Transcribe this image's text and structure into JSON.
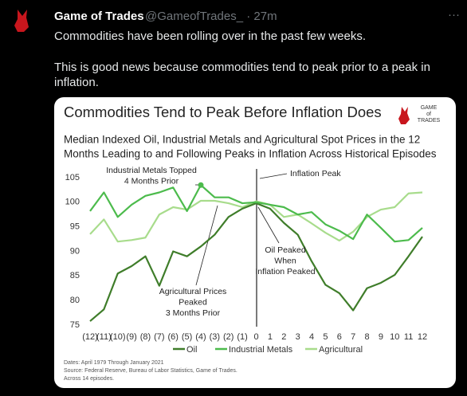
{
  "tweet": {
    "name": "Game of Trades",
    "meta": "@GameofTrades_ · 27m",
    "text_lines": [
      "Commodities have been rolling over in the past few weeks.",
      "This is good news because commodities tend to peak prior to a peak in",
      "inflation."
    ]
  },
  "logo": [
    "GAME",
    "of",
    "TRADES"
  ],
  "chart_data": {
    "type": "line",
    "title": "Commodities Tend to Peak Before Inflation Does",
    "subtitle": [
      "Median Indexed Oil, Industrial Metals and Agricultural Spot Prices in the 12",
      "Months Leading to and Following Peaks in Inflation Across Historical Episodes"
    ],
    "categories": [
      "(12)",
      "(11)",
      "(10)",
      "(9)",
      "(8)",
      "(7)",
      "(6)",
      "(5)",
      "(4)",
      "(3)",
      "(2)",
      "(1)",
      "0",
      "1",
      "2",
      "3",
      "4",
      "5",
      "6",
      "7",
      "8",
      "9",
      "10",
      "11",
      "12"
    ],
    "series": [
      {
        "name": "Oil",
        "color": "#3f7d2a",
        "values": [
          75.8,
          78.2,
          85.5,
          87,
          89,
          83,
          90,
          89,
          91,
          93.4,
          97,
          98.7,
          99.8,
          98.7,
          95.8,
          93.4,
          88,
          83.2,
          81.5,
          78,
          82.5,
          83.6,
          85.2,
          89,
          93
        ]
      },
      {
        "name": "Industrial Metals",
        "color": "#4cbb4c",
        "values": [
          98.2,
          102,
          97,
          99.5,
          101.3,
          102,
          103,
          98.2,
          103.5,
          101,
          101,
          99.8,
          100,
          99.5,
          99,
          97.5,
          98,
          95.5,
          94.2,
          92.5,
          97.5,
          94.8,
          92,
          92.3,
          94.8
        ]
      },
      {
        "name": "Agricultural",
        "color": "#a8dc8c",
        "values": [
          93.5,
          96.5,
          92,
          92.3,
          92.8,
          97.5,
          99,
          98.5,
          100.3,
          100.3,
          99.8,
          99,
          100.2,
          99.5,
          97,
          97.5,
          95.7,
          93.8,
          92.2,
          94,
          97,
          98.5,
          99,
          101.8,
          102
        ]
      }
    ],
    "ylim": [
      75,
      105
    ],
    "yticks": [
      75,
      80,
      85,
      90,
      95,
      100,
      105
    ],
    "annotations": [
      {
        "lines": [
          "Industrial Metals Topped",
          "4 Months Prior"
        ]
      },
      {
        "lines": [
          "Inflation Peak"
        ]
      },
      {
        "lines": [
          "Agricultural Prices",
          "Peaked",
          "3 Months Prior"
        ]
      },
      {
        "lines": [
          "Oil Peaked",
          "When",
          "Inflation Peaked"
        ]
      }
    ],
    "notes": [
      "Dates: April 1979 Through January 2021",
      "Source: Federal Reserve, Bureau of Labor Statistics, Game of Trades.",
      "Across 14 episodes."
    ]
  }
}
